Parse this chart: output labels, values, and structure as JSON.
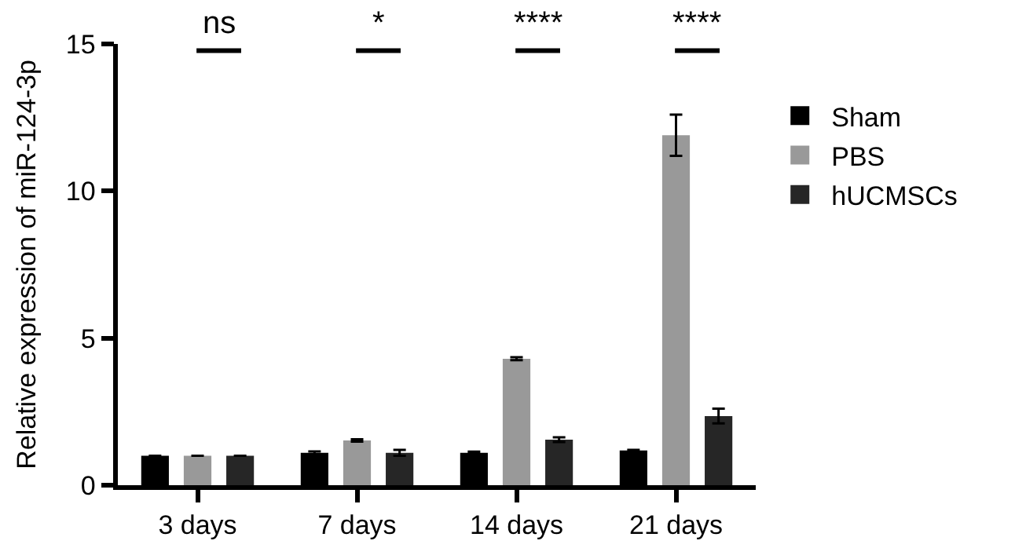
{
  "chart_data": {
    "type": "bar",
    "ylabel": "Relative expression of miR-124-3p",
    "categories": [
      "3 days",
      "7 days",
      "14 days",
      "21 days"
    ],
    "series": [
      {
        "name": "Sham",
        "color": "#000000",
        "values": [
          1.0,
          1.1,
          1.1,
          1.18
        ],
        "errors": [
          null,
          [
            1.05,
            1.15
          ],
          [
            1.06,
            1.14
          ],
          [
            1.16,
            1.2
          ]
        ]
      },
      {
        "name": "PBS",
        "color": "#999999",
        "values": [
          1.0,
          1.52,
          4.3,
          11.9
        ],
        "errors": [
          null,
          [
            1.48,
            1.56
          ],
          [
            4.25,
            4.35
          ],
          [
            11.2,
            12.6
          ]
        ]
      },
      {
        "name": "hUCMSCs",
        "color": "#262626",
        "values": [
          1.0,
          1.1,
          1.55,
          2.35
        ],
        "errors": [
          null,
          [
            1.0,
            1.2
          ],
          [
            1.47,
            1.63
          ],
          [
            2.1,
            2.6
          ]
        ]
      }
    ],
    "annotations": [
      "ns",
      "*",
      "****",
      "****"
    ],
    "ylim": [
      0,
      15
    ],
    "yticks": [
      0,
      5,
      10,
      15
    ],
    "legend": "top right"
  }
}
